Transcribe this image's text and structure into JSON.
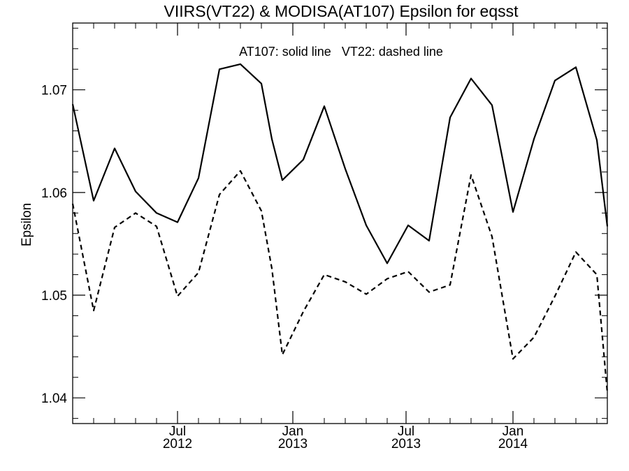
{
  "chart_data": {
    "type": "line",
    "title": "VIIRS(VT22) & MODISA(AT107)  Epsilon for eqsst",
    "annotation": "AT107: solid line   VT22: dashed line",
    "xlabel": "",
    "ylabel": "Epsilon",
    "ylim": [
      1.0375,
      1.0765
    ],
    "xlim": [
      0,
      25.5
    ],
    "x_ticks": [
      {
        "x": 5.0,
        "month": "Jul",
        "year": "2012"
      },
      {
        "x": 10.5,
        "month": "Jan",
        "year": "2013"
      },
      {
        "x": 15.9,
        "month": "Jul",
        "year": "2013"
      },
      {
        "x": 21.0,
        "month": "Jan",
        "year": "2014"
      }
    ],
    "y_ticks": [
      "1.04",
      "1.05",
      "1.06",
      "1.07"
    ],
    "y_tick_values": [
      1.04,
      1.05,
      1.06,
      1.07
    ],
    "x": [
      0,
      1,
      2,
      3,
      4,
      5,
      6,
      7,
      8,
      9,
      9.5,
      10,
      11,
      12,
      13,
      14,
      15,
      16,
      17,
      18,
      19,
      20,
      21,
      22,
      23,
      24,
      25,
      25.5
    ],
    "series": [
      {
        "style": "solid",
        "values": [
          1.0686,
          1.0592,
          1.0643,
          1.0601,
          1.058,
          1.0571,
          1.0614,
          1.072,
          1.0725,
          1.0706,
          1.0652,
          1.0612,
          1.0632,
          1.0684,
          1.0623,
          1.0568,
          1.0531,
          1.0568,
          1.0553,
          1.0673,
          1.0711,
          1.0685,
          1.0581,
          1.0652,
          1.0709,
          1.0722,
          1.0651,
          1.0567
        ]
      },
      {
        "style": "dashed",
        "values": [
          1.0589,
          1.0485,
          1.0566,
          1.058,
          1.0567,
          1.0499,
          1.0522,
          1.0598,
          1.0621,
          1.0582,
          1.0526,
          1.0442,
          1.0484,
          1.052,
          1.0513,
          1.0501,
          1.0516,
          1.0523,
          1.0503,
          1.051,
          1.0617,
          1.0557,
          1.0438,
          1.0459,
          1.0499,
          1.0542,
          1.052,
          1.0405
        ]
      }
    ],
    "grid": false
  }
}
